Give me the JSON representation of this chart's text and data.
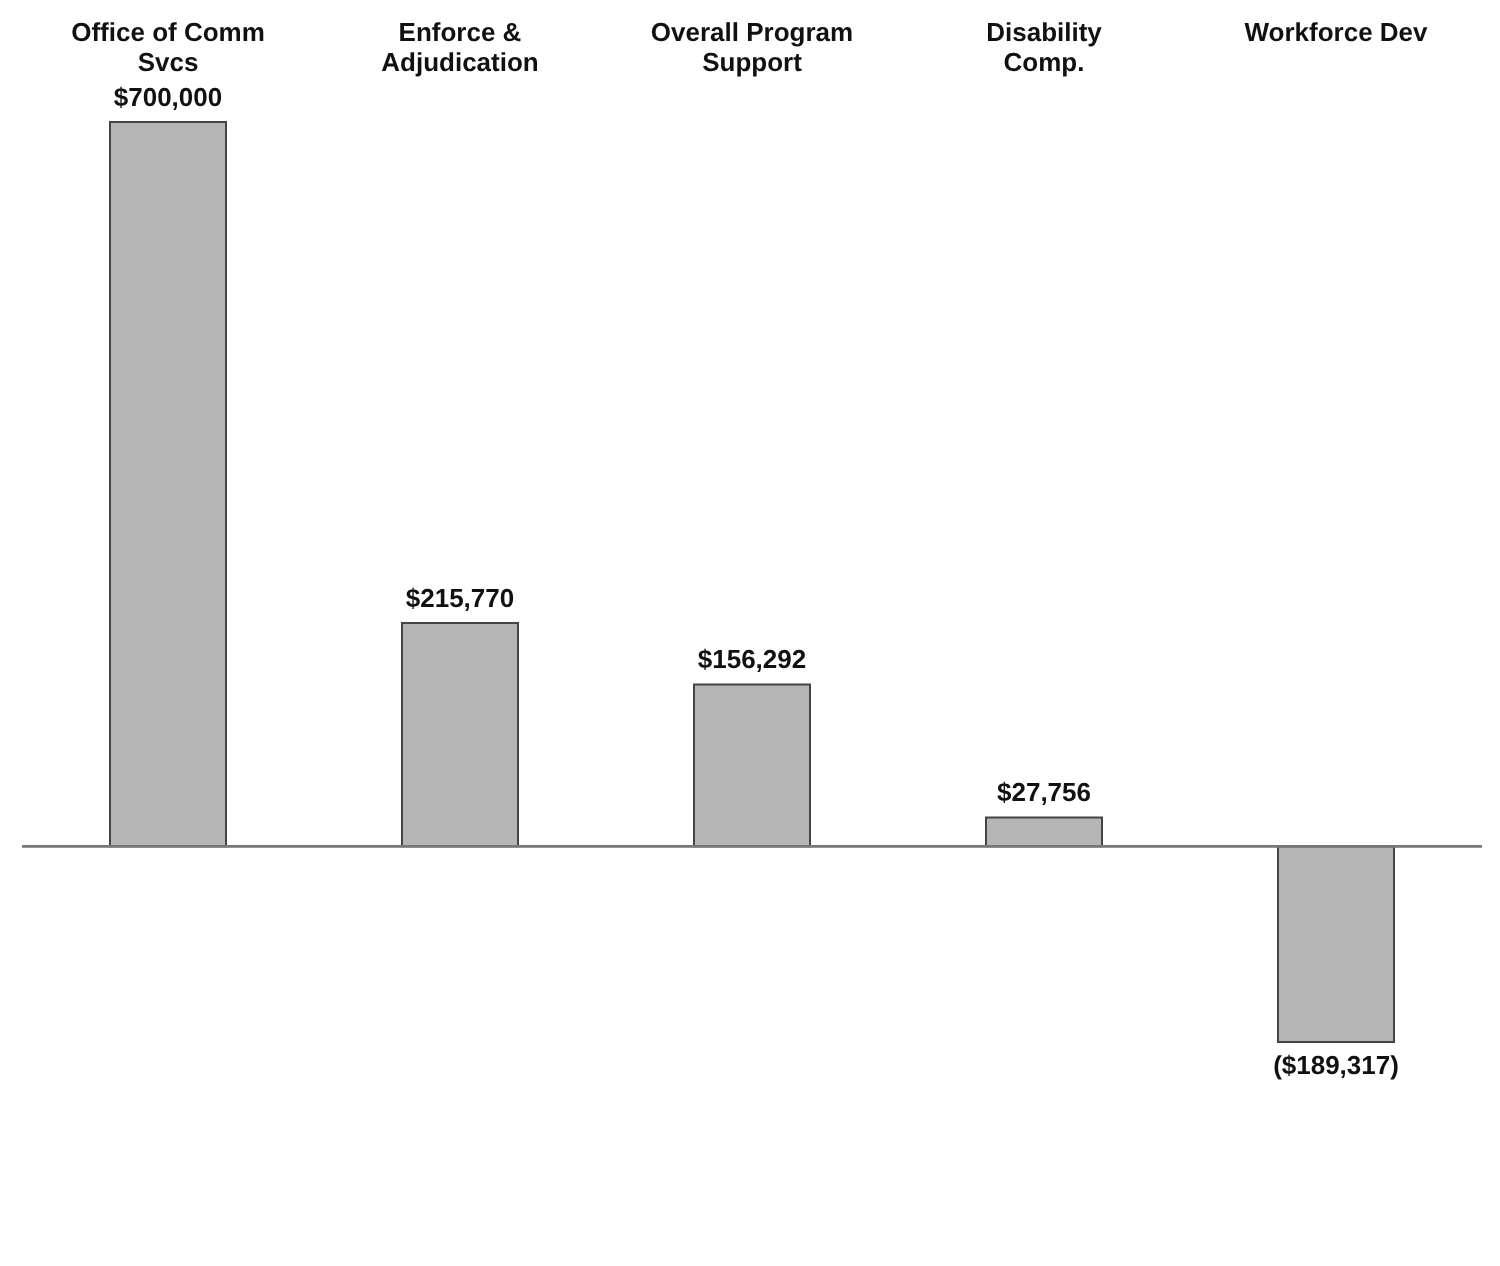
{
  "chart_data": {
    "type": "bar",
    "categories": [
      "Office of Comm Svcs",
      "Enforce & Adjudication",
      "Overall Program Support",
      "Disability Comp.",
      "Workforce Dev"
    ],
    "values": [
      700000,
      215770,
      156292,
      27756,
      -189317
    ],
    "value_labels": [
      "$700,000",
      "$215,770",
      "$156,292",
      "$27,756",
      "($189,317)"
    ],
    "color": "#b5b5b5",
    "tick_labels": "x"
  }
}
